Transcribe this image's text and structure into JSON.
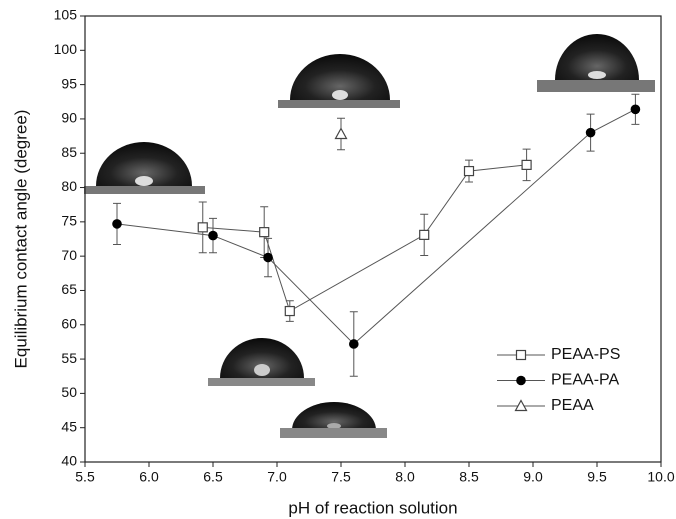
{
  "chart_data": {
    "type": "line",
    "x_label": "pH of reaction solution",
    "y_label": "Equilibrium contact angle (degree)",
    "xlim": [
      5.5,
      10.0
    ],
    "xticks": [
      5.5,
      {
        "value": 6,
        "label": "6.0"
      },
      6.5,
      {
        "value": 7,
        "label": "7.0"
      },
      7.5,
      {
        "value": 8,
        "label": "8.0"
      },
      8.5,
      {
        "value": 9,
        "label": "9.0"
      },
      9.5,
      {
        "value": 10,
        "label": "10.0"
      }
    ],
    "ylim": [
      40,
      105
    ],
    "yticks": [
      40,
      45,
      50,
      55,
      60,
      65,
      70,
      75,
      80,
      85,
      90,
      95,
      100,
      105
    ],
    "legend": "lower right",
    "series": [
      {
        "name": "PEAA-PS",
        "color": "#555555",
        "marker": "square-open",
        "x": [
          6.42,
          6.9,
          7.1,
          8.15,
          8.5,
          8.95
        ],
        "values": [
          74.2,
          73.5,
          62,
          73.1,
          82.4,
          83.3
        ],
        "errors": [
          3.7,
          3.7,
          1.5,
          3,
          1.6,
          2.3
        ]
      },
      {
        "name": "PEAA-PA",
        "color": "#555555",
        "marker": "circle-filled",
        "x": [
          5.75,
          6.5,
          6.93,
          7.6,
          9.45,
          9.8
        ],
        "values": [
          74.7,
          73,
          69.8,
          57.2,
          88,
          91.4
        ],
        "errors": [
          3,
          2.5,
          2.8,
          4.7,
          2.7,
          2.2
        ]
      },
      {
        "name": "PEAA",
        "color": "#555555",
        "marker": "triangle-open",
        "x": [
          7.5
        ],
        "values": [
          87.8
        ],
        "errors": [
          2.3
        ]
      }
    ]
  }
}
